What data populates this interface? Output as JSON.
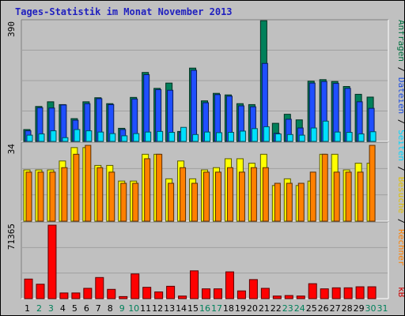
{
  "title": "Tages-Statistik im Monat November 2013",
  "right_labels": {
    "top": [
      {
        "text": "Anfragen",
        "color": "#007040"
      },
      {
        "text": " / ",
        "color": "#000000"
      },
      {
        "text": "Dateien",
        "color": "#1f4fdf"
      },
      {
        "text": " / ",
        "color": "#000000"
      },
      {
        "text": "Seiten",
        "color": "#00d7ff"
      },
      {
        "text": " / ",
        "color": "#000000"
      },
      {
        "text": "Besuche",
        "color": "#e0c000"
      },
      {
        "text": " / ",
        "color": "#000000"
      },
      {
        "text": "Rechner",
        "color": "#ff8000"
      }
    ],
    "bottom": {
      "text": "kB",
      "color": "#cc0000"
    }
  },
  "colors": {
    "hits": "#00805a",
    "files": "#1f4fff",
    "pages": "#00e0ff",
    "visits": "#ffff00",
    "sites": "#ff8000",
    "kbytes": "#ff0000",
    "weekend_label": "#00805a",
    "weekday_label": "#000000"
  },
  "chart_data": [
    {
      "type": "bar",
      "title": "Tages-Statistik im Monat November 2013",
      "x": [
        "1",
        "2",
        "3",
        "4",
        "5",
        "6",
        "7",
        "8",
        "9",
        "10",
        "11",
        "12",
        "13",
        "14",
        "15",
        "16",
        "17",
        "18",
        "19",
        "20",
        "21",
        "22",
        "23",
        "24",
        "25",
        "26",
        "27",
        "28",
        "29",
        "30",
        "31"
      ],
      "weekend_days": [
        "2",
        "3",
        "9",
        "10",
        "16",
        "17",
        "23",
        "24",
        "30",
        "31"
      ],
      "ylim": [
        0,
        390
      ],
      "ytick_label": "390",
      "series": [
        {
          "name": "Anfragen",
          "values": [
            38,
            112,
            127,
            118,
            73,
            127,
            140,
            121,
            42,
            141,
            221,
            170,
            187,
            32,
            235,
            130,
            154,
            149,
            121,
            118,
            387,
            58,
            87,
            69,
            193,
            198,
            192,
            176,
            151,
            142,
            0
          ]
        },
        {
          "name": "Dateien",
          "values": [
            34,
            108,
            107,
            117,
            68,
            121,
            137,
            118,
            38,
            136,
            214,
            166,
            164,
            30,
            228,
            124,
            150,
            145,
            114,
            111,
            250,
            26,
            71,
            43,
            187,
            192,
            186,
            170,
            127,
            106,
            0
          ]
        },
        {
          "name": "Seiten",
          "values": [
            20,
            24,
            34,
            12,
            38,
            34,
            30,
            25,
            18,
            25,
            30,
            32,
            29,
            45,
            22,
            30,
            28,
            29,
            33,
            41,
            47,
            24,
            22,
            20,
            43,
            65,
            30,
            29,
            24,
            31,
            0
          ]
        }
      ]
    },
    {
      "type": "bar",
      "ylim": [
        0,
        34
      ],
      "ytick_label": "34",
      "series": [
        {
          "name": "Besuche",
          "values": [
            23,
            23,
            23,
            27,
            33,
            33,
            25,
            25,
            18,
            18,
            30,
            30,
            19,
            27,
            19,
            23,
            24,
            28,
            28,
            26,
            30,
            16,
            19,
            16,
            18,
            30,
            30,
            23,
            26,
            26,
            0
          ]
        },
        {
          "name": "Rechner",
          "values": [
            22,
            22,
            22,
            24,
            30,
            34,
            24,
            22,
            17,
            17,
            28,
            30,
            17,
            24,
            17,
            22,
            22,
            24,
            22,
            24,
            24,
            17,
            17,
            17,
            22,
            30,
            22,
            22,
            22,
            34,
            0
          ]
        }
      ]
    },
    {
      "type": "bar",
      "ylim": [
        0,
        71365
      ],
      "ytick_label": "71365",
      "series": [
        {
          "name": "kB",
          "values": [
            19000,
            14000,
            71365,
            5500,
            5500,
            10000,
            20500,
            9000,
            2000,
            24000,
            11000,
            6500,
            12000,
            2500,
            27000,
            9500,
            9500,
            26000,
            7500,
            18500,
            10000,
            2500,
            3000,
            2500,
            14500,
            9500,
            10500,
            10500,
            11500,
            11500,
            0
          ]
        }
      ]
    }
  ]
}
